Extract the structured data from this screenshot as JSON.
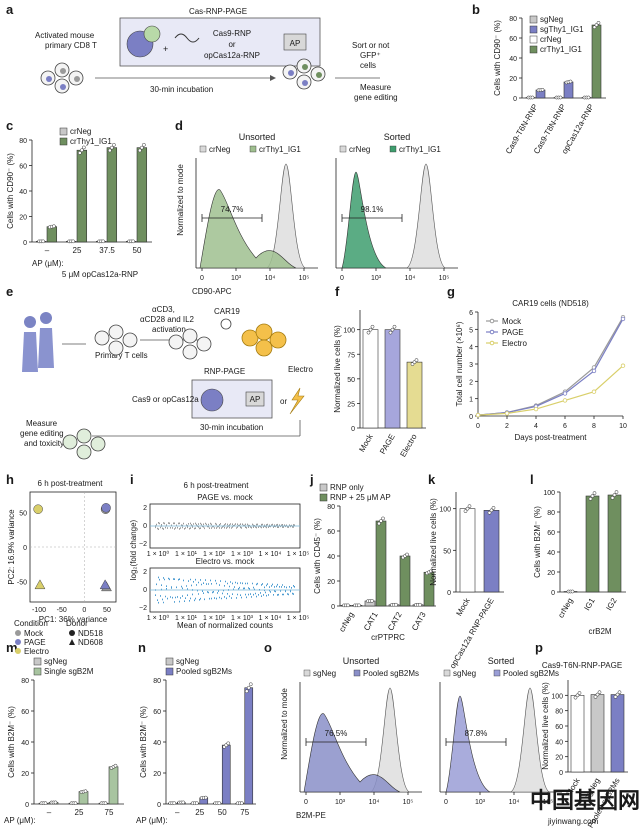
{
  "panels": {
    "a": {
      "label": "a",
      "cells_label": [
        "Activated mouse",
        "primary CD8 T"
      ],
      "box_title": "Cas-RNP-PAGE",
      "cas9": "Cas9-RNP",
      "or": "or",
      "cas12": "opCas12a-RNP",
      "ap": "AP",
      "incubation": "30-min incubation",
      "sort_label": [
        "Sort or not",
        "GFP⁺",
        "cells"
      ],
      "measure": [
        "Measure",
        "gene editing"
      ]
    },
    "e": {
      "label": "e",
      "activation": [
        "αCD3,",
        "αCD28 and IL2",
        "activation"
      ],
      "car": "CAR19",
      "primary": "Primary T cells",
      "rnp_page": "RNP-PAGE",
      "cas_choice": "Cas9 or opCas12a",
      "ap": "AP",
      "or": "or",
      "electro": "Electro",
      "incubation": "30-min incubation",
      "measure": [
        "Measure",
        "gene editing",
        "and toxicity"
      ]
    },
    "d": {
      "label": "d",
      "sub": [
        {
          "title": "Unsorted",
          "legend": [
            "crNeg",
            "crThy1_IG1"
          ],
          "pct": "74.7%"
        },
        {
          "title": "Sorted",
          "legend": [
            "crNeg",
            "crThy1_IG1"
          ],
          "pct": "98.1%"
        }
      ],
      "ylabel": "Normalized to mode",
      "xlabel": "CD90-APC",
      "xticks": [
        "0",
        "10³",
        "10⁴",
        "10⁵"
      ]
    },
    "o": {
      "label": "o",
      "sub": [
        {
          "title": "Unsorted",
          "legend": [
            "sgNeg",
            "Pooled sgB2Ms"
          ],
          "pct": "76.5%"
        },
        {
          "title": "Sorted",
          "legend": [
            "sgNeg",
            "Pooled sgB2Ms"
          ],
          "pct": "87.8%"
        }
      ],
      "ylabel": "Normalized to mode",
      "xlabel": "B2M-PE",
      "xticks": [
        "0",
        "10³",
        "10⁴",
        "10⁵"
      ]
    },
    "i": {
      "label": "i",
      "title": "6 h post-treatment",
      "sub": [
        "PAGE vs. mock",
        "Electro vs. mock"
      ],
      "ylabel": "log₂(fold change)",
      "xlabel": "Mean of normalized counts",
      "xticks": [
        "1 × 10⁰",
        "1 × 10¹",
        "1 × 10²",
        "1 × 10³",
        "1 × 10⁴",
        "1 × 10⁵"
      ],
      "yticks": [
        "2",
        "0",
        "−2"
      ]
    },
    "misc": {
      "c_xsub": "5 μM opCas12a-RNP",
      "j_xsub": "crPTPRC",
      "l_xsub": "crB2M",
      "ap_um": "AP (μM):",
      "ap_dash": "–",
      "p_title": "Cas9-T6N-RNP-PAGE",
      "watermark_cn": "中国基因网",
      "watermark_url": "jiyinwang.com",
      "h_title": "6 h post-treatment",
      "h_legend_condition": "Condition",
      "h_legend_donor": "Donor",
      "g_title": "CAR19 cells (ND518)"
    }
  },
  "chart_data": [
    {
      "id": "b",
      "type": "bar",
      "ylabel": "Cells with CD90⁻ (%)",
      "categories": [
        "Cas9-T6N-RNP",
        "Cas9-T8N-RNP",
        "opCas12a-RNP"
      ],
      "ylim": [
        0,
        80
      ],
      "yticks": [
        0,
        20,
        40,
        60,
        80
      ],
      "series": [
        {
          "name": "sgNeg",
          "values": [
            0.5,
            0.5,
            null
          ],
          "color": "#c8c8c8"
        },
        {
          "name": "sgThy1_IG1",
          "values": [
            8,
            16,
            null
          ],
          "color": "#7b7fc4"
        },
        {
          "name": "crNeg",
          "values": [
            null,
            null,
            0.5
          ],
          "color": "#ffffff"
        },
        {
          "name": "crThy1_IG1",
          "values": [
            null,
            null,
            73
          ],
          "color": "#6f8f5f"
        }
      ]
    },
    {
      "id": "c",
      "type": "bar",
      "ylabel": "Cells with CD90⁻ (%)",
      "categories": [
        "–",
        "25",
        "37.5",
        "50"
      ],
      "ylim": [
        0,
        80
      ],
      "yticks": [
        0,
        20,
        40,
        60,
        80
      ],
      "series": [
        {
          "name": "crNeg",
          "values": [
            0.5,
            0.5,
            0.5,
            0.5
          ],
          "color": "#c8c8c8"
        },
        {
          "name": "crThy1_IG1",
          "values": [
            12,
            72,
            74,
            74
          ],
          "color": "#6f8f5f"
        }
      ]
    },
    {
      "id": "f",
      "type": "bar",
      "ylabel": "Normalized live cells (%)",
      "categories": [
        "Mock",
        "PAGE",
        "Electro"
      ],
      "ylim": [
        0,
        120
      ],
      "yticks": [
        0,
        25,
        50,
        75,
        100
      ],
      "values": [
        100,
        100,
        67
      ],
      "colors": [
        "#ffffff",
        "#a6a6dc",
        "#e5dc92"
      ]
    },
    {
      "id": "g",
      "type": "line",
      "ylabel": "Total cell number (×10⁶)",
      "xlabel": "Days post-treatment",
      "x": [
        0,
        2,
        4,
        6,
        8,
        10
      ],
      "ylim": [
        0,
        6
      ],
      "yticks": [
        0,
        1,
        2,
        3,
        4,
        5,
        6
      ],
      "series": [
        {
          "name": "Mock",
          "values": [
            0.05,
            0.2,
            0.6,
            1.4,
            2.8,
            5.7
          ],
          "color": "#9a9a9a"
        },
        {
          "name": "PAGE",
          "values": [
            0.05,
            0.2,
            0.55,
            1.3,
            2.6,
            5.6
          ],
          "color": "#7b7fc4"
        },
        {
          "name": "Electro",
          "values": [
            0.05,
            0.15,
            0.4,
            0.9,
            1.4,
            2.9
          ],
          "color": "#d9cf6a"
        }
      ]
    },
    {
      "id": "h",
      "type": "scatter",
      "xlabel": "PC1: 36% variance",
      "ylabel": "PC2: 16.9% variance",
      "xticks": [
        -100,
        -50,
        0,
        50
      ],
      "yticks": [
        50,
        0,
        -50
      ],
      "series": [
        {
          "name": "Mock",
          "color": "#9a9a9a",
          "points": [
            [
              47,
              55,
              "c"
            ],
            [
              49,
              -58,
              "t"
            ]
          ]
        },
        {
          "name": "PAGE",
          "color": "#7b7fc4",
          "points": [
            [
              48,
              57,
              "c"
            ],
            [
              46,
              -55,
              "t"
            ]
          ]
        },
        {
          "name": "Electro",
          "color": "#d9cf6a",
          "points": [
            [
              -102,
              55,
              "c"
            ],
            [
              -98,
              -55,
              "t"
            ]
          ]
        }
      ],
      "donor": [
        "ND518",
        "ND608"
      ]
    },
    {
      "id": "j",
      "type": "bar",
      "ylabel": "Cells with CD45⁻ (%)",
      "categories": [
        "crNeg",
        "CAT1",
        "CAT2",
        "CAT3"
      ],
      "ylim": [
        0,
        80
      ],
      "yticks": [
        0,
        20,
        40,
        60,
        80
      ],
      "series": [
        {
          "name": "RNP only",
          "values": [
            0.5,
            4,
            1,
            1
          ],
          "color": "#c8c8c8"
        },
        {
          "name": "RNP + 25 μM AP",
          "values": [
            0.5,
            68,
            40,
            27
          ],
          "color": "#6f8f5f"
        }
      ]
    },
    {
      "id": "k",
      "type": "bar",
      "ylabel": "Normalized live cells (%)",
      "categories": [
        "Mock",
        "opCas12a RNP-PAGE"
      ],
      "ylim": [
        0,
        120
      ],
      "yticks": [
        0,
        50,
        100
      ],
      "values": [
        100,
        98
      ],
      "colors": [
        "#ffffff",
        "#7b7fc4"
      ]
    },
    {
      "id": "l",
      "type": "bar",
      "ylabel": "Cells with B2M⁻ (%)",
      "categories": [
        "crNeg",
        "IG1",
        "IG2"
      ],
      "ylim": [
        0,
        100
      ],
      "yticks": [
        0,
        20,
        40,
        60,
        80,
        100
      ],
      "values": [
        0.5,
        96,
        97
      ],
      "colors": [
        "#c8c8c8",
        "#6f8f5f",
        "#6f8f5f"
      ]
    },
    {
      "id": "m",
      "type": "bar",
      "ylabel": "Cells with B2M⁻ (%)",
      "categories": [
        "–",
        "25",
        "75"
      ],
      "ylim": [
        0,
        80
      ],
      "yticks": [
        0,
        20,
        40,
        60,
        80
      ],
      "series": [
        {
          "name": "sgNeg",
          "values": [
            0.5,
            0.5,
            0.5
          ],
          "color": "#c8c8c8"
        },
        {
          "name": "Single sgB2M",
          "values": [
            1,
            8,
            24
          ],
          "color": "#a8c4a0"
        }
      ]
    },
    {
      "id": "n",
      "type": "bar",
      "ylabel": "Cells with B2M⁻ (%)",
      "categories": [
        "–",
        "25",
        "50",
        "75"
      ],
      "ylim": [
        0,
        80
      ],
      "yticks": [
        0,
        20,
        40,
        60,
        80
      ],
      "series": [
        {
          "name": "sgNeg",
          "values": [
            0.5,
            0.5,
            0.5,
            0.5
          ],
          "color": "#c8c8c8"
        },
        {
          "name": "Pooled sgB2Ms",
          "values": [
            1,
            4,
            38,
            75
          ],
          "color": "#7b7fc4"
        }
      ]
    },
    {
      "id": "p",
      "type": "bar",
      "ylabel": "Normalized live cells (%)",
      "categories": [
        "Mock",
        "sgNeg",
        "Pooled sgB2Ms"
      ],
      "ylim": [
        0,
        120
      ],
      "yticks": [
        0,
        20,
        40,
        60,
        80,
        100
      ],
      "values": [
        100,
        101,
        101
      ],
      "colors": [
        "#ffffff",
        "#c8c8c8",
        "#7b7fc4"
      ]
    }
  ]
}
